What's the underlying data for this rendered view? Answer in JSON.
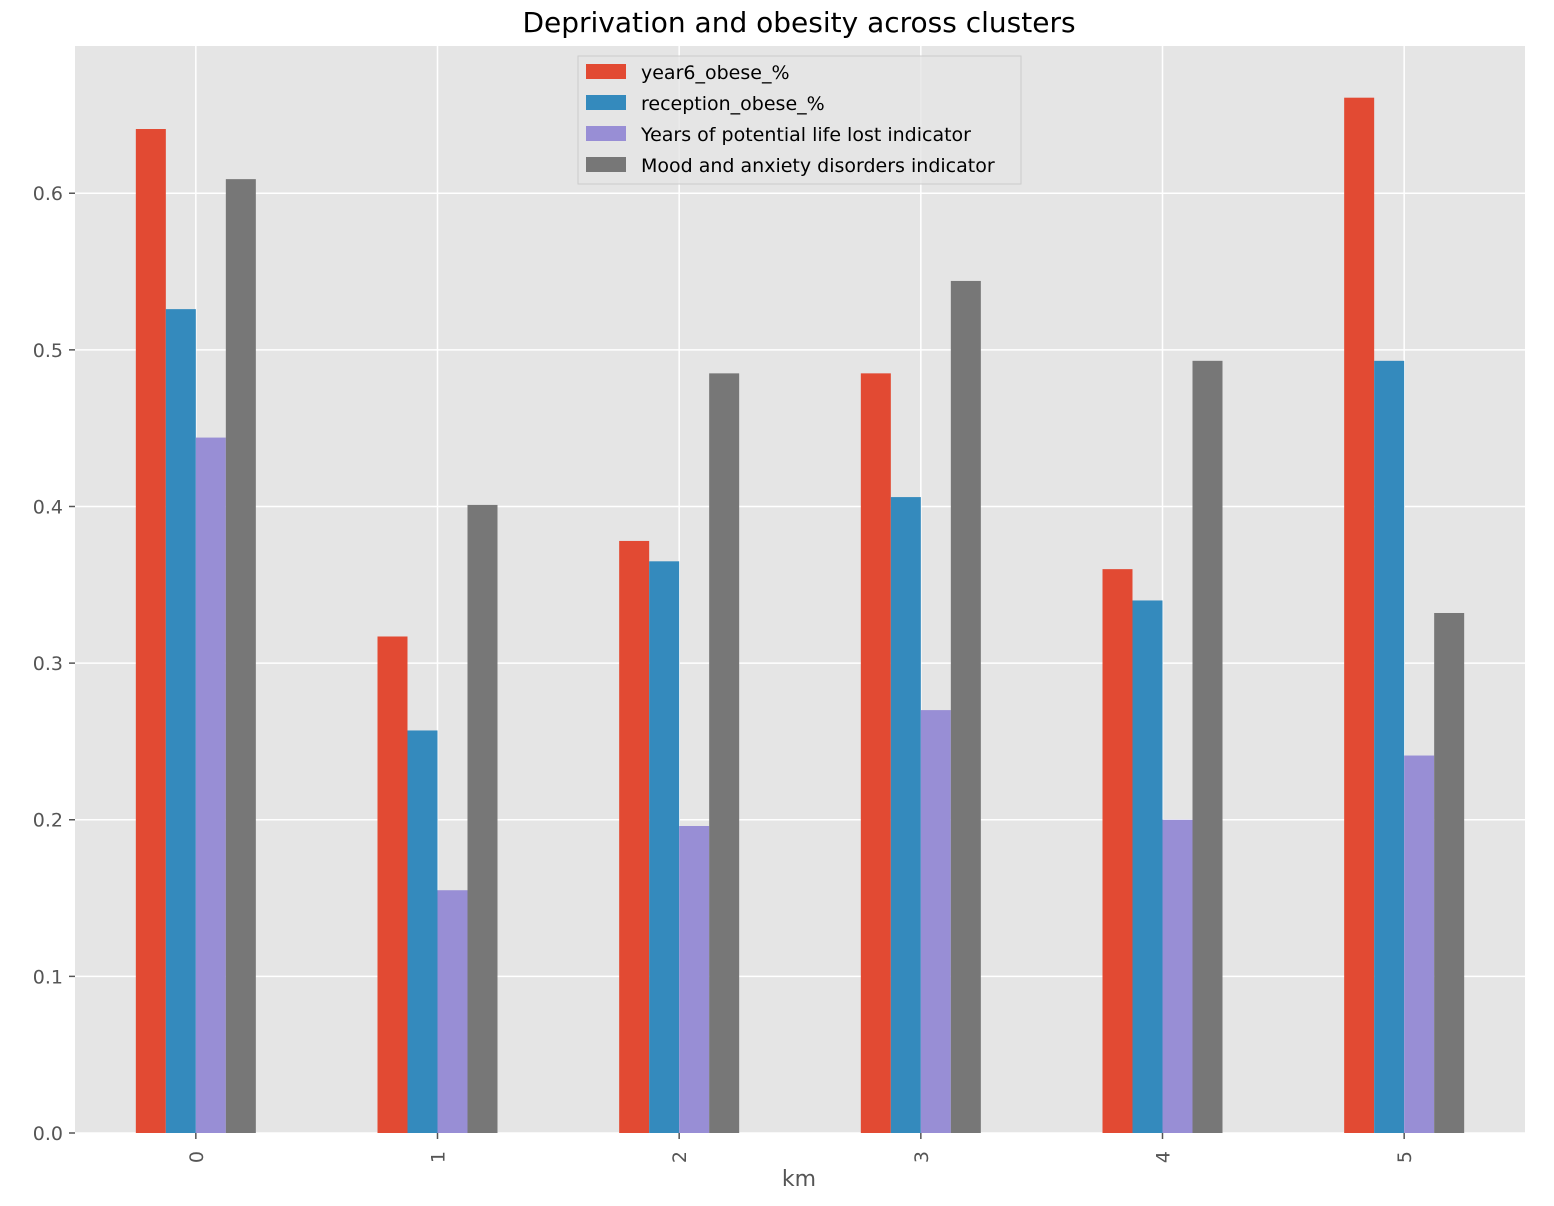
{
  "chart_data": {
    "type": "bar",
    "title": "Deprivation and obesity across clusters",
    "xlabel": "km",
    "ylabel": "",
    "categories": [
      "0",
      "1",
      "2",
      "3",
      "4",
      "5"
    ],
    "ylim": [
      0,
      0.694
    ],
    "yticks": [
      "0.0",
      "0.1",
      "0.2",
      "0.3",
      "0.4",
      "0.5",
      "0.6"
    ],
    "grid": true,
    "legend_position": "top-center",
    "series": [
      {
        "name": "year6_obese_%",
        "color": "#E24A33",
        "values": [
          0.641,
          0.317,
          0.378,
          0.485,
          0.36,
          0.661
        ]
      },
      {
        "name": "reception_obese_%",
        "color": "#348ABD",
        "values": [
          0.526,
          0.257,
          0.365,
          0.406,
          0.34,
          0.493
        ]
      },
      {
        "name": "Years of potential life lost indicator",
        "color": "#988ED5",
        "values": [
          0.444,
          0.155,
          0.196,
          0.27,
          0.2,
          0.241
        ]
      },
      {
        "name": "Mood and anxiety disorders indicator",
        "color": "#777777",
        "values": [
          0.609,
          0.401,
          0.485,
          0.544,
          0.493,
          0.332
        ]
      }
    ]
  }
}
